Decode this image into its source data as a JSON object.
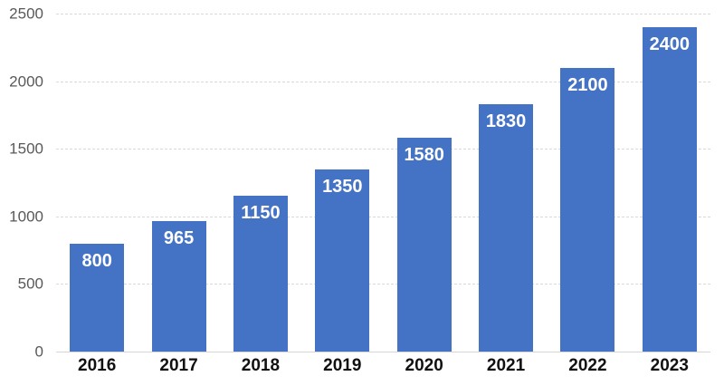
{
  "chart_data": {
    "type": "bar",
    "title": "",
    "xlabel": "",
    "ylabel": "",
    "categories": [
      "2016",
      "2017",
      "2018",
      "2019",
      "2020",
      "2021",
      "2022",
      "2023"
    ],
    "values": [
      800,
      965,
      1150,
      1350,
      1580,
      1830,
      2100,
      2400
    ],
    "value_labels": [
      "800",
      "965",
      "1150",
      "1350",
      "1580",
      "1830",
      "2100",
      "2400"
    ],
    "ylim": [
      0,
      2500
    ],
    "yticks": [
      0,
      500,
      1000,
      1500,
      2000,
      2500
    ],
    "ytick_labels": [
      "0",
      "500",
      "1000",
      "1500",
      "2000",
      "2500"
    ],
    "grid": "dashed-horizontal",
    "legend": "none",
    "colors": {
      "bar_fill": "#4472c4",
      "bar_value_text": "#ffffff",
      "y_tick_text": "#595959",
      "x_tick_text": "#111111",
      "gridline": "#d9d9d9",
      "background": "#ffffff"
    }
  }
}
